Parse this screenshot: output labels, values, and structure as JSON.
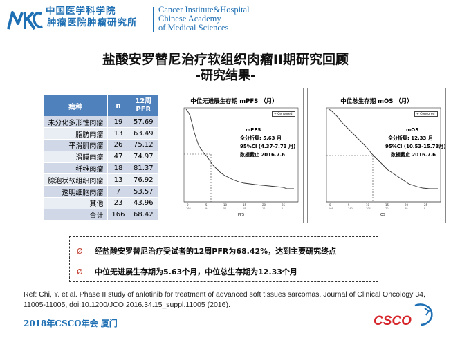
{
  "header": {
    "logo_cn_line1": "中国医学科学院",
    "logo_cn_line2": "肿瘤医院肿瘤研究所",
    "logo_en_line1": "Cancer Institute&Hospital",
    "logo_en_line2": "Chinese Academy",
    "logo_en_line3": "of Medical Sciences"
  },
  "title": "盐酸安罗替尼治疗软组织肉瘤II期研究回顾",
  "subtitle": "-研究结果-",
  "table": {
    "headers": [
      "病种",
      "n",
      "12周 PFR"
    ],
    "rows": [
      {
        "type": "未分化多形性肉瘤",
        "n": "19",
        "pfr": "57.69"
      },
      {
        "type": "脂肪肉瘤",
        "n": "13",
        "pfr": "63.49"
      },
      {
        "type": "平滑肌肉瘤",
        "n": "26",
        "pfr": "75.12"
      },
      {
        "type": "滑膜肉瘤",
        "n": "47",
        "pfr": "74.97"
      },
      {
        "type": "纤维肉瘤",
        "n": "18",
        "pfr": "81.37"
      },
      {
        "type": "腺泡状软组织肉瘤",
        "n": "13",
        "pfr": "76.92"
      },
      {
        "type": "透明细胞肉瘤",
        "n": "7",
        "pfr": "53.57"
      },
      {
        "type": "其他",
        "n": "23",
        "pfr": "43.96"
      },
      {
        "type": "合计",
        "n": "166",
        "pfr": "68.42"
      }
    ]
  },
  "plots": {
    "pfs": {
      "title": "中位无进展生存期 mPFS （月）",
      "label": "mPFS",
      "analysis": "全分析集: 5.63 月",
      "ci": "95%CI (4.37-7.73 月)",
      "cutoff": "数据截止 2016.7.6",
      "xaxis": "PFS",
      "legend": "Censored"
    },
    "os": {
      "title": "中位总生存期 mOS （月）",
      "label": "mOS",
      "analysis": "全分析集: 12.33 月",
      "ci": "95%CI (10.53-15.73月)",
      "cutoff": "数据截止 2016.7.6",
      "xaxis": "OS",
      "legend": "Censored"
    }
  },
  "findings": {
    "bullet": "Ø",
    "item1": "经盐酸安罗替尼治疗受试者的12周PFR为68.42%，达到主要研究终点",
    "item2": "中位无进展生存期为5.63个月，中位总生存期为12.33个月"
  },
  "reference": "Ref:   Chi, Y. et al. Phase II study of anlotinib for treatment of advanced soft tissues sarcomas. Journal of Clinical Oncology 34, 11005-11005, doi:10.1200/JCO.2016.34.15_suppl.11005 (2016).",
  "footer": {
    "event": "2018年CSCO年会   厦门",
    "logo_text": "CSCO"
  },
  "colors": {
    "brand_blue": "#1e6fb3",
    "table_header": "#4f81bd",
    "table_row_dark": "#d0d8e8",
    "table_row_light": "#e9edf4",
    "bullet_red": "#c0392b",
    "csco_red": "#d6262c"
  }
}
